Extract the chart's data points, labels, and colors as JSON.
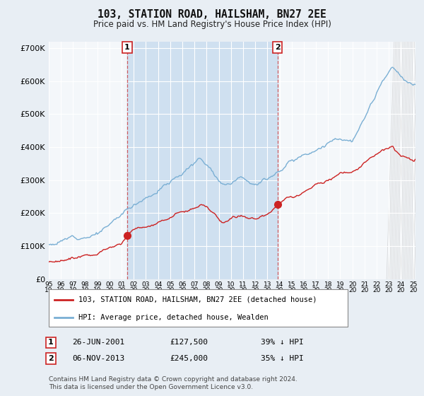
{
  "title": "103, STATION ROAD, HAILSHAM, BN27 2EE",
  "subtitle": "Price paid vs. HM Land Registry's House Price Index (HPI)",
  "legend_red": "103, STATION ROAD, HAILSHAM, BN27 2EE (detached house)",
  "legend_blue": "HPI: Average price, detached house, Wealden",
  "transaction1_date": "26-JUN-2001",
  "transaction1_price": 127500,
  "transaction1_year": 2001.46,
  "transaction1_hpi_note": "39% ↓ HPI",
  "transaction2_date": "06-NOV-2013",
  "transaction2_price": 245000,
  "transaction2_year": 2013.84,
  "transaction2_hpi_note": "35% ↓ HPI",
  "footer": "Contains HM Land Registry data © Crown copyright and database right 2024.\nThis data is licensed under the Open Government Licence v3.0.",
  "fig_bg_color": "#e8eef4",
  "plot_bg_color": "#f4f7fa",
  "shaded_color": "#cfe0f0",
  "red_color": "#cc2222",
  "blue_color": "#7aafd4",
  "grid_color": "#ffffff",
  "ylim": [
    0,
    720000
  ],
  "xlim_start": 1995,
  "xlim_end": 2025.2,
  "hatch_start": 2024.42,
  "years": [
    1995,
    1996,
    1997,
    1998,
    1999,
    2000,
    2001,
    2002,
    2003,
    2004,
    2005,
    2006,
    2007,
    2008,
    2009,
    2010,
    2011,
    2012,
    2013,
    2014,
    2015,
    2016,
    2017,
    2018,
    2019,
    2020,
    2021,
    2022,
    2023,
    2024,
    2025
  ]
}
